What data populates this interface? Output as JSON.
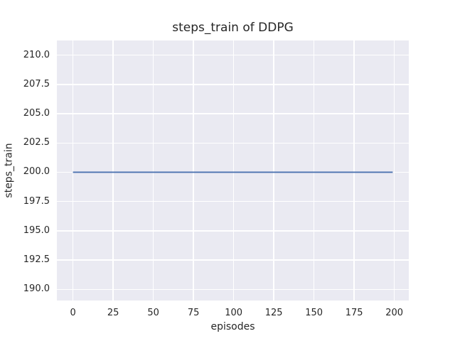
{
  "figure": {
    "background": "#ffffff"
  },
  "chart_data": {
    "type": "line",
    "title": "steps_train of DDPG",
    "xlabel": "episodes",
    "ylabel": "steps_train",
    "x_ticks": [
      "0",
      "25",
      "50",
      "75",
      "100",
      "125",
      "150",
      "175",
      "200"
    ],
    "y_ticks": [
      "210.0",
      "207.5",
      "205.0",
      "202.5",
      "200.0",
      "197.5",
      "195.0",
      "192.5",
      "190.0"
    ],
    "xlim": [
      -10,
      209
    ],
    "ylim": [
      189.05,
      211.25
    ],
    "grid": true,
    "legend_position": "none",
    "series": [
      {
        "name": "steps_train",
        "color": "#4c72b0",
        "x": [
          0,
          199
        ],
        "y": [
          200,
          200
        ],
        "description": "constant value 200 for every episode from 0 to 199"
      }
    ],
    "style": {
      "axes_background": "#eaeaf2",
      "grid_color": "#ffffff",
      "text_color": "#262626"
    }
  }
}
